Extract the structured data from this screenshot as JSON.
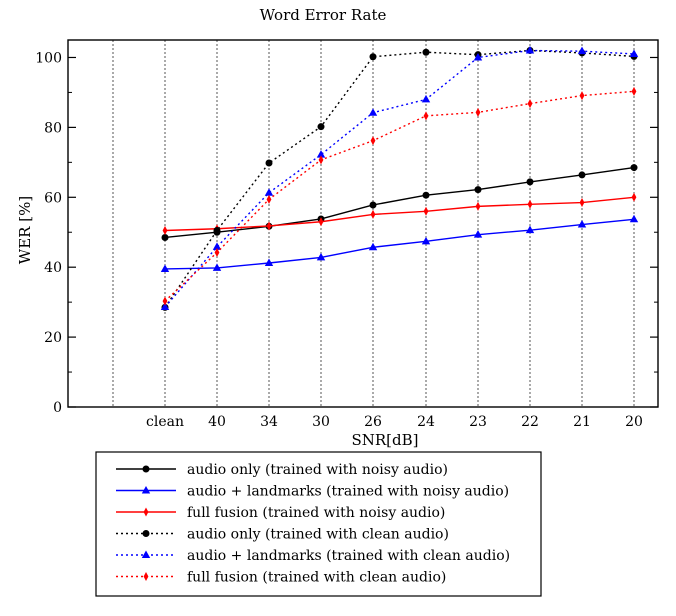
{
  "chart_data": {
    "type": "line",
    "title": "Word Error Rate",
    "xlabel": "SNR[dB]",
    "ylabel": "WER [%]",
    "categories": [
      "clean",
      "40",
      "34",
      "30",
      "26",
      "24",
      "23",
      "22",
      "21",
      "20"
    ],
    "ylim": [
      0,
      105
    ],
    "yticks": [
      0,
      20,
      40,
      60,
      80,
      100
    ],
    "grid": "vertical dotted lines at categories",
    "legend_position": "below-plot",
    "series": [
      {
        "name": "audio only (trained with noisy audio)",
        "color": "#000000",
        "style": "solid",
        "marker": "circle",
        "values": [
          48.5,
          50,
          51.7,
          53.8,
          57.8,
          60.6,
          62.2,
          64.4,
          66.4,
          68.5
        ]
      },
      {
        "name": "audio + landmarks (trained with noisy audio)",
        "color": "#0000ff",
        "style": "solid",
        "marker": "triangle",
        "values": [
          39.5,
          39.8,
          41.2,
          42.8,
          45.7,
          47.4,
          49.3,
          50.6,
          52.2,
          53.7
        ]
      },
      {
        "name": "full fusion (trained with noisy audio)",
        "color": "#ff0000",
        "style": "solid",
        "marker": "diamond",
        "values": [
          50.5,
          51,
          51.8,
          53,
          55.1,
          56,
          57.4,
          58,
          58.5,
          60
        ]
      },
      {
        "name": "audio only (trained with clean audio)",
        "color": "#000000",
        "style": "dotted",
        "marker": "circle",
        "values": [
          28.5,
          50.5,
          69.8,
          80.2,
          100.2,
          101.5,
          100.8,
          102,
          101.3,
          100.3
        ]
      },
      {
        "name": "audio + landmarks (trained with clean audio)",
        "color": "#0000ff",
        "style": "dotted",
        "marker": "triangle",
        "values": [
          28.6,
          45.8,
          61.3,
          72.2,
          84.2,
          88,
          100,
          102,
          101.8,
          101
        ]
      },
      {
        "name": "full fusion (trained with clean audio)",
        "color": "#ff0000",
        "style": "dotted",
        "marker": "diamond",
        "values": [
          30.3,
          44.2,
          59.4,
          70.7,
          76.2,
          83.3,
          84.3,
          86.8,
          89.1,
          90.3
        ]
      }
    ]
  }
}
